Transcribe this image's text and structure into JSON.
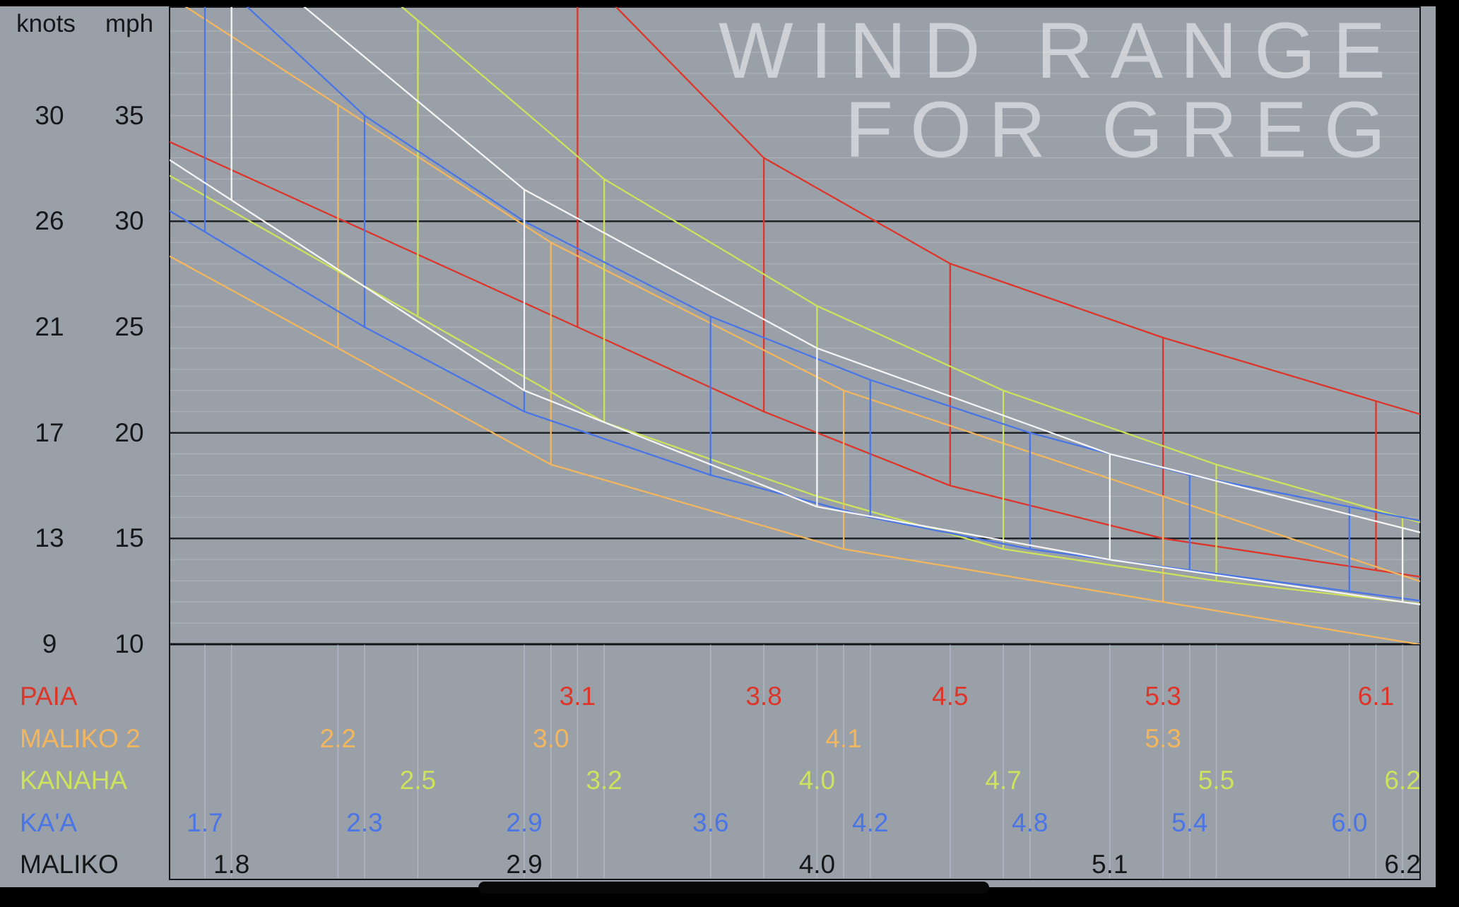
{
  "watermark": {
    "line1": "WIND RANGE",
    "line2": "FOR GREG"
  },
  "chart_data": {
    "type": "range-band",
    "title": "WIND RANGE FOR GREG",
    "description_of_axes": "x = sail size labels per location row, y = wind speed",
    "y_axis": {
      "unit_left": "knots",
      "unit_right": "mph",
      "knots_ticks": [
        30,
        26,
        21,
        17,
        13,
        9
      ],
      "mph_ticks": [
        35,
        30,
        25,
        20,
        15,
        10
      ],
      "mph_plotted_range": [
        10,
        40
      ],
      "major_gridlines_mph": [
        30,
        20,
        15
      ],
      "grid": true
    },
    "legend_position": "bottom-left rows",
    "series": [
      {
        "name": "PAIA",
        "color": "#dd352a",
        "text_color": "#dd352a",
        "sail_sizes": [
          3.1,
          3.8,
          4.5,
          5.3,
          6.1
        ],
        "wind_min_mph": [
          25,
          21,
          17.5,
          15,
          13.5
        ],
        "wind_max_mph": [
          42,
          33,
          28,
          24.5,
          21.5
        ]
      },
      {
        "name": "MALIKO 2",
        "color": "#f2b65e",
        "text_color": "#f2b65e",
        "sail_sizes": [
          2.2,
          3.0,
          4.1,
          5.3
        ],
        "wind_min_mph": [
          24,
          18.5,
          14.5,
          12
        ],
        "wind_max_mph": [
          35.5,
          29,
          22,
          17
        ]
      },
      {
        "name": "KANAHA",
        "color": "#cde25d",
        "text_color": "#cde25d",
        "sail_sizes": [
          2.5,
          3.2,
          4.0,
          4.7,
          5.5,
          6.2
        ],
        "wind_min_mph": [
          25.5,
          20.5,
          17,
          14.5,
          13,
          12
        ],
        "wind_max_mph": [
          39.5,
          32,
          26,
          22,
          18.5,
          16
        ]
      },
      {
        "name": "KA'A",
        "color": "#4a75e6",
        "text_color": "#4a75e6",
        "sail_sizes": [
          1.7,
          2.3,
          2.9,
          3.6,
          4.2,
          4.8,
          5.4,
          6.0
        ],
        "wind_min_mph": [
          29.5,
          25,
          21,
          18,
          16,
          14.5,
          13.5,
          12.5
        ],
        "wind_max_mph": [
          42,
          35,
          30,
          25.5,
          22.5,
          20,
          18,
          16.5
        ]
      },
      {
        "name": "MALIKO",
        "color": "#f4f4f4",
        "text_color": "#141618",
        "sail_sizes": [
          1.8,
          2.9,
          4.0,
          5.1,
          6.2
        ],
        "wind_min_mph": [
          31,
          22,
          16.5,
          14,
          12
        ],
        "wind_max_mph": [
          43,
          31.5,
          24,
          19,
          15.5
        ]
      }
    ],
    "colors": {
      "background": "#9aa0a8",
      "grid_minor": "rgba(255,255,255,0.22)",
      "grid_major": "#202326",
      "frame": "#131518",
      "axis_text": "#15171a"
    }
  }
}
